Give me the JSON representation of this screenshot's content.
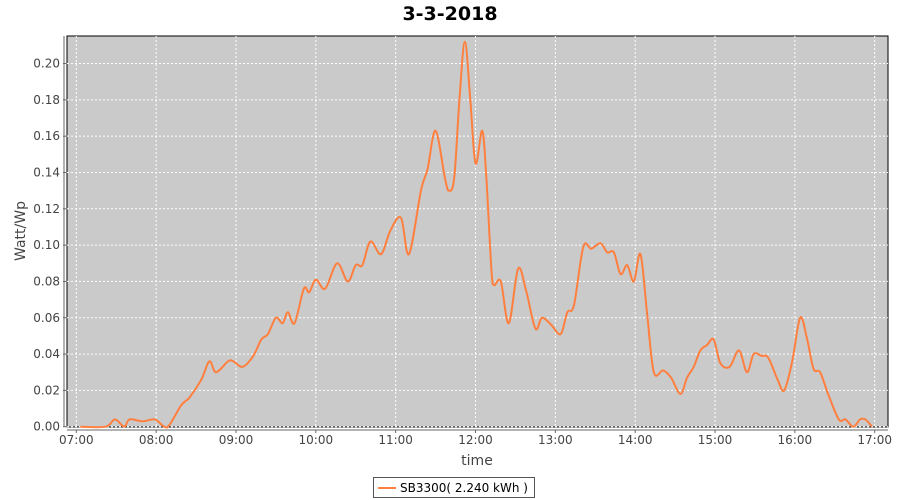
{
  "chart_data": {
    "type": "line",
    "title": "3-3-2018",
    "xlabel": "time",
    "ylabel": "Watt/Wp",
    "ylim": [
      0,
      0.215
    ],
    "xlim": [
      "06:53",
      "17:10"
    ],
    "x_ticks": [
      "07:00",
      "08:00",
      "09:00",
      "10:00",
      "11:00",
      "12:00",
      "13:00",
      "14:00",
      "15:00",
      "16:00",
      "17:00"
    ],
    "y_ticks": [
      "0.00",
      "0.02",
      "0.04",
      "0.06",
      "0.08",
      "0.10",
      "0.12",
      "0.14",
      "0.16",
      "0.18",
      "0.20"
    ],
    "grid": true,
    "legend_placement": "bottom",
    "colors": {
      "series": "#ff7f3f",
      "plot_background": "#cacaca",
      "grid": "#ffffff"
    },
    "series": [
      {
        "name": "SB3300( 2.240 kWh )",
        "x": [
          "07:03",
          "07:22",
          "07:29",
          "07:36",
          "07:40",
          "07:50",
          "07:59",
          "08:06",
          "08:10",
          "08:19",
          "08:25",
          "08:34",
          "08:40",
          "08:45",
          "08:54",
          "08:58",
          "09:05",
          "09:13",
          "09:19",
          "09:24",
          "09:30",
          "09:35",
          "09:39",
          "09:44",
          "09:51",
          "09:55",
          "10:00",
          "10:07",
          "10:16",
          "10:24",
          "10:30",
          "10:35",
          "10:41",
          "10:49",
          "10:56",
          "11:04",
          "11:10",
          "11:19",
          "11:24",
          "11:30",
          "11:37",
          "11:40",
          "11:44",
          "11:48",
          "11:52",
          "11:56",
          "12:00",
          "12:05",
          "12:08",
          "12:12",
          "12:14",
          "12:19",
          "12:25",
          "12:32",
          "12:38",
          "12:45",
          "12:50",
          "12:57",
          "13:04",
          "13:09",
          "13:14",
          "13:21",
          "13:27",
          "13:34",
          "13:39",
          "13:44",
          "13:49",
          "13:54",
          "13:59",
          "14:04",
          "14:09",
          "14:14",
          "14:21",
          "14:27",
          "14:34",
          "14:39",
          "14:44",
          "14:49",
          "14:54",
          "14:59",
          "15:04",
          "15:11",
          "15:18",
          "15:24",
          "15:29",
          "15:35",
          "15:40",
          "15:47",
          "15:52",
          "15:58",
          "16:04",
          "16:09",
          "16:14",
          "16:19",
          "16:25",
          "16:33",
          "16:38",
          "16:44",
          "16:49",
          "16:53",
          "16:58"
        ],
        "y": [
          0,
          0,
          0.004,
          0,
          0.004,
          0.003,
          0.004,
          0,
          0.001,
          0.012,
          0.016,
          0.026,
          0.036,
          0.03,
          0.036,
          0.036,
          0.033,
          0.039,
          0.048,
          0.051,
          0.06,
          0.057,
          0.063,
          0.057,
          0.076,
          0.074,
          0.081,
          0.076,
          0.09,
          0.08,
          0.089,
          0.089,
          0.102,
          0.095,
          0.108,
          0.115,
          0.095,
          0.13,
          0.142,
          0.163,
          0.137,
          0.13,
          0.137,
          0.181,
          0.212,
          0.181,
          0.145,
          0.163,
          0.139,
          0.086,
          0.078,
          0.08,
          0.057,
          0.087,
          0.075,
          0.054,
          0.06,
          0.056,
          0.051,
          0.063,
          0.067,
          0.099,
          0.098,
          0.101,
          0.096,
          0.096,
          0.084,
          0.089,
          0.08,
          0.095,
          0.062,
          0.03,
          0.031,
          0.027,
          0.018,
          0.027,
          0.033,
          0.042,
          0.045,
          0.048,
          0.035,
          0.033,
          0.042,
          0.03,
          0.04,
          0.039,
          0.038,
          0.026,
          0.02,
          0.036,
          0.06,
          0.049,
          0.032,
          0.03,
          0.018,
          0.004,
          0.004,
          0,
          0.004,
          0.004,
          0
        ]
      }
    ]
  }
}
